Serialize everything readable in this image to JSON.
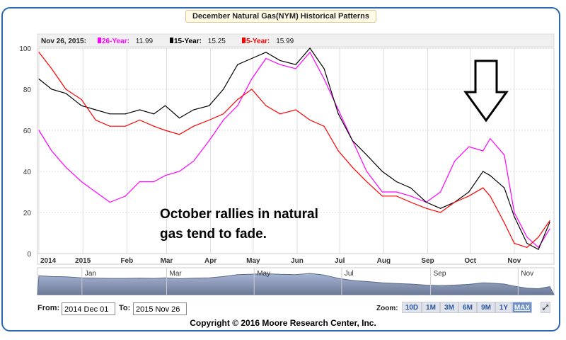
{
  "chart_data": {
    "type": "line",
    "title": "December Natural Gas(NYM) Historical Patterns",
    "legend": {
      "date": "Nov 26, 2015:",
      "entries": [
        {
          "name": "26-Year:",
          "value": "11.99",
          "color": "#ff00ff"
        },
        {
          "name": "15-Year:",
          "value": "15.25",
          "color": "#000000"
        },
        {
          "name": "5-Year:",
          "value": "15.99",
          "color": "#ff0000"
        }
      ],
      "placement": "top-left"
    },
    "ylim": [
      0,
      100
    ],
    "yticks": [
      "0",
      "20",
      "40",
      "60",
      "80",
      "100"
    ],
    "xrange": [
      "2014-12-01",
      "2015-11-26"
    ],
    "xticks": [
      {
        "label": "2014",
        "date": "2014-12-01"
      },
      {
        "label": "2015",
        "date": "2015-01-01"
      },
      {
        "label": "Feb",
        "date": "2015-02-01"
      },
      {
        "label": "Mar",
        "date": "2015-03-01"
      },
      {
        "label": "Apr",
        "date": "2015-04-01"
      },
      {
        "label": "May",
        "date": "2015-05-01"
      },
      {
        "label": "Jun",
        "date": "2015-06-01"
      },
      {
        "label": "Jul",
        "date": "2015-07-01"
      },
      {
        "label": "Aug",
        "date": "2015-08-01"
      },
      {
        "label": "Sep",
        "date": "2015-09-01"
      },
      {
        "label": "Oct",
        "date": "2015-10-01"
      },
      {
        "label": "Nov",
        "date": "2015-11-01"
      }
    ],
    "grid": true,
    "x": [
      "2014-12-01",
      "2014-12-10",
      "2014-12-20",
      "2014-12-31",
      "2015-01-10",
      "2015-01-20",
      "2015-01-31",
      "2015-02-10",
      "2015-02-20",
      "2015-02-28",
      "2015-03-10",
      "2015-03-20",
      "2015-03-31",
      "2015-04-10",
      "2015-04-20",
      "2015-04-30",
      "2015-05-10",
      "2015-05-20",
      "2015-05-31",
      "2015-06-10",
      "2015-06-20",
      "2015-06-30",
      "2015-07-10",
      "2015-07-20",
      "2015-07-31",
      "2015-08-10",
      "2015-08-20",
      "2015-08-31",
      "2015-09-10",
      "2015-09-20",
      "2015-09-30",
      "2015-10-10",
      "2015-10-15",
      "2015-10-25",
      "2015-11-01",
      "2015-11-10",
      "2015-11-18",
      "2015-11-26"
    ],
    "series": [
      {
        "name": "26-Year",
        "color": "#ff00ff",
        "values": [
          60,
          50,
          42,
          35,
          30,
          25,
          28,
          35,
          35,
          38,
          40,
          45,
          55,
          65,
          72,
          85,
          95,
          92,
          90,
          98,
          85,
          70,
          55,
          40,
          30,
          30,
          28,
          25,
          30,
          45,
          52,
          50,
          56,
          48,
          20,
          8,
          3,
          11.99
        ]
      },
      {
        "name": "15-Year",
        "color": "#000000",
        "values": [
          85,
          80,
          78,
          72,
          70,
          68,
          68,
          70,
          68,
          72,
          66,
          70,
          72,
          80,
          92,
          95,
          98,
          94,
          92,
          100,
          90,
          68,
          55,
          48,
          40,
          35,
          32,
          25,
          22,
          25,
          30,
          40,
          38,
          32,
          18,
          5,
          2,
          15.25
        ]
      },
      {
        "name": "5-Year",
        "color": "#ff0000",
        "values": [
          98,
          90,
          80,
          75,
          65,
          62,
          62,
          65,
          62,
          60,
          58,
          62,
          65,
          68,
          75,
          80,
          72,
          68,
          70,
          65,
          62,
          50,
          42,
          35,
          28,
          28,
          25,
          22,
          20,
          25,
          28,
          32,
          28,
          15,
          5,
          3,
          8,
          15.99
        ]
      }
    ],
    "annotations": [
      "October rallies in natural",
      "gas tend to fade."
    ],
    "navigator_labels": [
      "Jan",
      "Mar",
      "May",
      "Jul",
      "Sep",
      "Nov"
    ]
  },
  "controls": {
    "from_label": "From:",
    "from_value": "2014 Dec 01",
    "to_label": "To:",
    "to_value": "2015 Nov 26",
    "zoom_label": "Zoom:",
    "zoom_buttons": [
      "10D",
      "1M",
      "3M",
      "6M",
      "9M",
      "1Y",
      "MAX"
    ],
    "active_zoom": "MAX"
  },
  "copyright": "Copyright © 2016 Moore Research Center, Inc."
}
